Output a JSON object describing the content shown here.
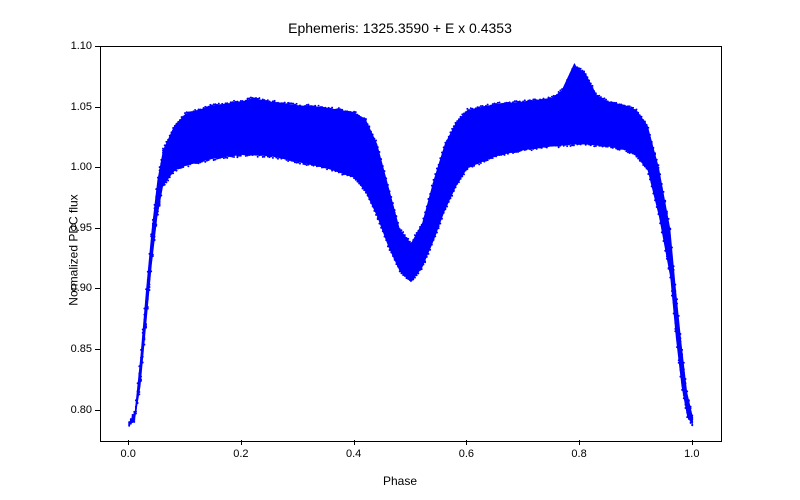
{
  "chart": {
    "type": "scatter",
    "title": "Ephemeris: 1325.3590 + E x 0.4353",
    "title_fontsize": 14,
    "xlabel": "Phase",
    "ylabel": "Normalized PDC flux",
    "label_fontsize": 12,
    "tick_fontsize": 11,
    "xlim": [
      -0.05,
      1.05
    ],
    "ylim": [
      0.775,
      1.1
    ],
    "xticks": [
      0.0,
      0.2,
      0.4,
      0.6,
      0.8,
      1.0
    ],
    "yticks": [
      0.8,
      0.85,
      0.9,
      0.95,
      1.0,
      1.05,
      1.1
    ],
    "background_color": "#ffffff",
    "border_color": "#000000",
    "text_color": "#000000",
    "marker_color": "#0000ff",
    "marker_size": 3,
    "band_upper": [
      [
        0.0,
        0.79
      ],
      [
        0.01,
        0.8
      ],
      [
        0.02,
        0.845
      ],
      [
        0.03,
        0.9
      ],
      [
        0.04,
        0.95
      ],
      [
        0.05,
        0.99
      ],
      [
        0.06,
        1.015
      ],
      [
        0.08,
        1.035
      ],
      [
        0.1,
        1.045
      ],
      [
        0.15,
        1.052
      ],
      [
        0.2,
        1.055
      ],
      [
        0.22,
        1.058
      ],
      [
        0.25,
        1.055
      ],
      [
        0.3,
        1.052
      ],
      [
        0.35,
        1.05
      ],
      [
        0.4,
        1.046
      ],
      [
        0.42,
        1.04
      ],
      [
        0.44,
        1.02
      ],
      [
        0.46,
        0.985
      ],
      [
        0.48,
        0.95
      ],
      [
        0.5,
        0.938
      ],
      [
        0.52,
        0.955
      ],
      [
        0.54,
        0.99
      ],
      [
        0.56,
        1.02
      ],
      [
        0.58,
        1.038
      ],
      [
        0.6,
        1.048
      ],
      [
        0.65,
        1.053
      ],
      [
        0.7,
        1.055
      ],
      [
        0.75,
        1.058
      ],
      [
        0.77,
        1.065
      ],
      [
        0.79,
        1.085
      ],
      [
        0.81,
        1.078
      ],
      [
        0.83,
        1.06
      ],
      [
        0.85,
        1.055
      ],
      [
        0.88,
        1.052
      ],
      [
        0.9,
        1.048
      ],
      [
        0.92,
        1.035
      ],
      [
        0.94,
        1.0
      ],
      [
        0.96,
        0.95
      ],
      [
        0.97,
        0.9
      ],
      [
        0.98,
        0.855
      ],
      [
        0.99,
        0.815
      ],
      [
        1.0,
        0.795
      ]
    ],
    "band_lower": [
      [
        0.0,
        0.788
      ],
      [
        0.01,
        0.792
      ],
      [
        0.02,
        0.82
      ],
      [
        0.03,
        0.87
      ],
      [
        0.04,
        0.92
      ],
      [
        0.05,
        0.96
      ],
      [
        0.06,
        0.985
      ],
      [
        0.08,
        0.998
      ],
      [
        0.1,
        1.002
      ],
      [
        0.15,
        1.008
      ],
      [
        0.2,
        1.011
      ],
      [
        0.25,
        1.01
      ],
      [
        0.3,
        1.005
      ],
      [
        0.35,
        1.0
      ],
      [
        0.4,
        0.992
      ],
      [
        0.42,
        0.98
      ],
      [
        0.44,
        0.96
      ],
      [
        0.46,
        0.935
      ],
      [
        0.48,
        0.915
      ],
      [
        0.5,
        0.906
      ],
      [
        0.52,
        0.918
      ],
      [
        0.54,
        0.94
      ],
      [
        0.56,
        0.965
      ],
      [
        0.58,
        0.985
      ],
      [
        0.6,
        1.0
      ],
      [
        0.65,
        1.01
      ],
      [
        0.7,
        1.015
      ],
      [
        0.75,
        1.018
      ],
      [
        0.8,
        1.02
      ],
      [
        0.85,
        1.018
      ],
      [
        0.88,
        1.015
      ],
      [
        0.9,
        1.01
      ],
      [
        0.92,
        0.998
      ],
      [
        0.94,
        0.96
      ],
      [
        0.96,
        0.91
      ],
      [
        0.97,
        0.86
      ],
      [
        0.98,
        0.82
      ],
      [
        0.99,
        0.795
      ],
      [
        1.0,
        0.788
      ]
    ],
    "spike_line": [
      [
        0.76,
        1.055
      ],
      [
        0.79,
        1.085
      ],
      [
        0.83,
        1.052
      ]
    ]
  }
}
